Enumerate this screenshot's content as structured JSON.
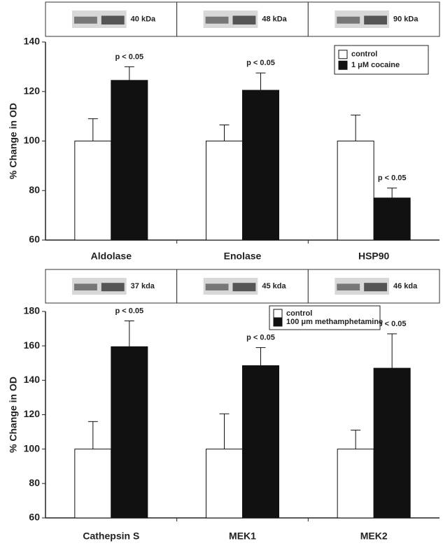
{
  "chart_data": [
    {
      "type": "bar",
      "y_label": "% Change in OD",
      "categories": [
        "Aldolase",
        "Enolase",
        "HSP90"
      ],
      "blot_labels": [
        "40 kDa",
        "48 kDa",
        "90 kDa"
      ],
      "series": [
        {
          "name": "control",
          "color": "#ffffff",
          "values": [
            100,
            100,
            100
          ],
          "errors": [
            9,
            6.5,
            10.5
          ]
        },
        {
          "name": "1 μM cocaine",
          "color": "#111111",
          "values": [
            124.5,
            120.5,
            77
          ],
          "errors": [
            5.5,
            7,
            4
          ],
          "annotations": [
            "p < 0.05",
            "p < 0.05",
            "p < 0.05"
          ]
        }
      ],
      "ylim": [
        60,
        140
      ],
      "yticks": [
        60,
        80,
        100,
        120,
        140
      ],
      "grid": false,
      "legend": "top-right"
    },
    {
      "type": "bar",
      "y_label": "% Change in OD",
      "categories": [
        "Cathepsin S",
        "MEK1",
        "MEK2"
      ],
      "blot_labels": [
        "37 kda",
        "45 kda",
        "46 kda"
      ],
      "series": [
        {
          "name": "control",
          "color": "#ffffff",
          "values": [
            100,
            100,
            100
          ],
          "errors": [
            16,
            20.5,
            11
          ]
        },
        {
          "name": "100 μm methamphetamine",
          "color": "#111111",
          "values": [
            159.5,
            148.5,
            147
          ],
          "errors": [
            15,
            10.5,
            20
          ],
          "annotations": [
            "p < 0.05",
            "p < 0.05",
            "p < 0.05"
          ]
        }
      ],
      "ylim": [
        60,
        180
      ],
      "yticks": [
        60,
        80,
        100,
        120,
        140,
        160,
        180
      ],
      "grid": false,
      "legend": "top"
    }
  ]
}
